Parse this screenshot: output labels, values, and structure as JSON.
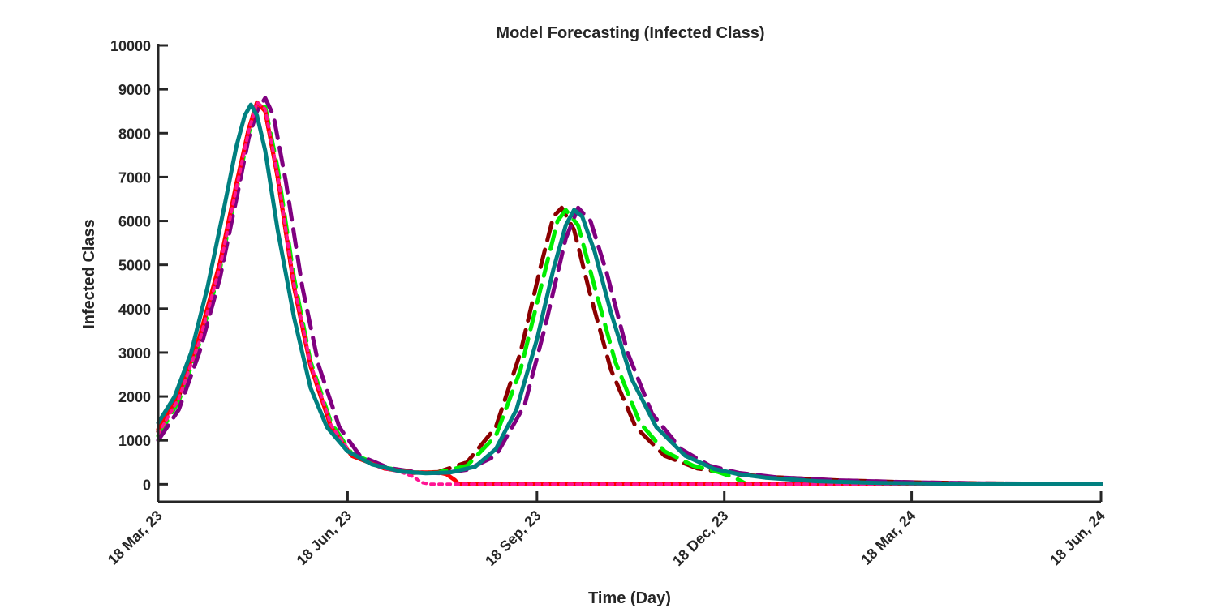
{
  "chart_data": {
    "type": "line",
    "title": "Model Forecasting (Infected Class)",
    "xlabel": "Time (Day)",
    "ylabel": "Infected Class",
    "xlim": [
      0,
      458
    ],
    "ylim": [
      -400,
      10000
    ],
    "grid": false,
    "yticks": [
      0,
      1000,
      2000,
      3000,
      4000,
      5000,
      6000,
      7000,
      8000,
      9000,
      10000
    ],
    "xticks": [
      {
        "day": 0,
        "label": "18 Mar, 23"
      },
      {
        "day": 92,
        "label": "18 Jun, 23"
      },
      {
        "day": 184,
        "label": "18 Sep, 23"
      },
      {
        "day": 275,
        "label": "18 Dec, 23"
      },
      {
        "day": 366,
        "label": "18 Mar, 24"
      },
      {
        "day": 458,
        "label": "18 Jun, 24"
      }
    ],
    "series": [
      {
        "name": "Brown dashed forecast",
        "color": "#8b0000",
        "style": "dashed",
        "points": [
          [
            0,
            1200
          ],
          [
            10,
            2000
          ],
          [
            20,
            3300
          ],
          [
            30,
            5000
          ],
          [
            38,
            6800
          ],
          [
            44,
            8100
          ],
          [
            48,
            8700
          ],
          [
            52,
            8500
          ],
          [
            58,
            7000
          ],
          [
            66,
            4500
          ],
          [
            74,
            2700
          ],
          [
            84,
            1300
          ],
          [
            94,
            650
          ],
          [
            110,
            360
          ],
          [
            124,
            260
          ],
          [
            136,
            280
          ],
          [
            150,
            500
          ],
          [
            164,
            1300
          ],
          [
            176,
            3000
          ],
          [
            186,
            5000
          ],
          [
            192,
            6100
          ],
          [
            196,
            6300
          ],
          [
            202,
            5800
          ],
          [
            210,
            4300
          ],
          [
            220,
            2600
          ],
          [
            232,
            1300
          ],
          [
            246,
            650
          ],
          [
            262,
            360
          ],
          [
            280,
            230
          ],
          [
            300,
            160
          ],
          [
            330,
            90
          ],
          [
            366,
            45
          ],
          [
            400,
            22
          ],
          [
            430,
            12
          ],
          [
            458,
            8
          ]
        ]
      },
      {
        "name": "Green dashed forecast",
        "color": "#00ee00",
        "style": "dashed",
        "points": [
          [
            0,
            1100
          ],
          [
            10,
            1900
          ],
          [
            20,
            3200
          ],
          [
            30,
            4900
          ],
          [
            38,
            6700
          ],
          [
            44,
            8000
          ],
          [
            48,
            8700
          ],
          [
            52,
            8600
          ],
          [
            58,
            7200
          ],
          [
            66,
            4700
          ],
          [
            74,
            2800
          ],
          [
            84,
            1400
          ],
          [
            94,
            700
          ],
          [
            110,
            380
          ],
          [
            124,
            270
          ],
          [
            136,
            270
          ],
          [
            150,
            420
          ],
          [
            164,
            1100
          ],
          [
            176,
            2600
          ],
          [
            186,
            4500
          ],
          [
            194,
            6000
          ],
          [
            198,
            6250
          ],
          [
            204,
            5900
          ],
          [
            212,
            4500
          ],
          [
            222,
            2800
          ],
          [
            234,
            1400
          ],
          [
            246,
            750
          ],
          [
            260,
            420
          ],
          [
            272,
            280
          ],
          [
            280,
            150
          ],
          [
            286,
            0
          ],
          [
            458,
            0
          ]
        ]
      },
      {
        "name": "Purple dashed forecast",
        "color": "#800080",
        "style": "dashed",
        "points": [
          [
            0,
            1000
          ],
          [
            10,
            1700
          ],
          [
            20,
            3000
          ],
          [
            30,
            4700
          ],
          [
            38,
            6500
          ],
          [
            44,
            7900
          ],
          [
            48,
            8500
          ],
          [
            52,
            8800
          ],
          [
            56,
            8400
          ],
          [
            62,
            6900
          ],
          [
            70,
            4500
          ],
          [
            78,
            2700
          ],
          [
            88,
            1300
          ],
          [
            98,
            650
          ],
          [
            112,
            370
          ],
          [
            126,
            270
          ],
          [
            138,
            250
          ],
          [
            150,
            330
          ],
          [
            164,
            650
          ],
          [
            178,
            1800
          ],
          [
            188,
            3600
          ],
          [
            198,
            5600
          ],
          [
            204,
            6300
          ],
          [
            210,
            6000
          ],
          [
            218,
            4800
          ],
          [
            228,
            3000
          ],
          [
            240,
            1600
          ],
          [
            254,
            800
          ],
          [
            268,
            420
          ],
          [
            282,
            260
          ],
          [
            300,
            160
          ],
          [
            330,
            90
          ],
          [
            366,
            45
          ],
          [
            400,
            22
          ],
          [
            430,
            12
          ],
          [
            458,
            8
          ]
        ]
      },
      {
        "name": "Red solid forecast",
        "color": "#ff0000",
        "style": "solid",
        "points": [
          [
            0,
            1250
          ],
          [
            10,
            2050
          ],
          [
            20,
            3350
          ],
          [
            30,
            5050
          ],
          [
            38,
            6850
          ],
          [
            44,
            8100
          ],
          [
            48,
            8700
          ],
          [
            52,
            8500
          ],
          [
            58,
            7000
          ],
          [
            66,
            4500
          ],
          [
            74,
            2700
          ],
          [
            84,
            1300
          ],
          [
            94,
            650
          ],
          [
            110,
            360
          ],
          [
            124,
            270
          ],
          [
            136,
            270
          ],
          [
            140,
            230
          ],
          [
            144,
            100
          ],
          [
            146,
            0
          ],
          [
            458,
            0
          ]
        ]
      },
      {
        "name": "Magenta dotted forecast",
        "color": "#ff1493",
        "style": "dotted",
        "points": [
          [
            0,
            1150
          ],
          [
            10,
            1950
          ],
          [
            20,
            3250
          ],
          [
            30,
            4950
          ],
          [
            38,
            6750
          ],
          [
            44,
            8050
          ],
          [
            48,
            8700
          ],
          [
            52,
            8550
          ],
          [
            58,
            7050
          ],
          [
            66,
            4550
          ],
          [
            74,
            2750
          ],
          [
            84,
            1350
          ],
          [
            94,
            680
          ],
          [
            108,
            380
          ],
          [
            118,
            280
          ],
          [
            124,
            170
          ],
          [
            128,
            40
          ],
          [
            132,
            0
          ],
          [
            458,
            0
          ]
        ]
      },
      {
        "name": "Teal solid forecast",
        "color": "#008080",
        "style": "solid",
        "points": [
          [
            0,
            1400
          ],
          [
            8,
            2000
          ],
          [
            16,
            3000
          ],
          [
            24,
            4500
          ],
          [
            32,
            6300
          ],
          [
            38,
            7700
          ],
          [
            42,
            8400
          ],
          [
            45,
            8650
          ],
          [
            48,
            8400
          ],
          [
            52,
            7600
          ],
          [
            58,
            5800
          ],
          [
            66,
            3800
          ],
          [
            74,
            2200
          ],
          [
            82,
            1300
          ],
          [
            92,
            750
          ],
          [
            104,
            450
          ],
          [
            118,
            290
          ],
          [
            130,
            250
          ],
          [
            142,
            270
          ],
          [
            154,
            400
          ],
          [
            164,
            800
          ],
          [
            174,
            1700
          ],
          [
            184,
            3300
          ],
          [
            192,
            4900
          ],
          [
            198,
            5900
          ],
          [
            202,
            6250
          ],
          [
            206,
            6100
          ],
          [
            212,
            5300
          ],
          [
            220,
            3900
          ],
          [
            230,
            2400
          ],
          [
            242,
            1300
          ],
          [
            256,
            650
          ],
          [
            270,
            350
          ],
          [
            282,
            230
          ],
          [
            295,
            150
          ],
          [
            320,
            70
          ],
          [
            350,
            30
          ],
          [
            380,
            15
          ],
          [
            420,
            8
          ],
          [
            458,
            5
          ]
        ]
      }
    ]
  }
}
